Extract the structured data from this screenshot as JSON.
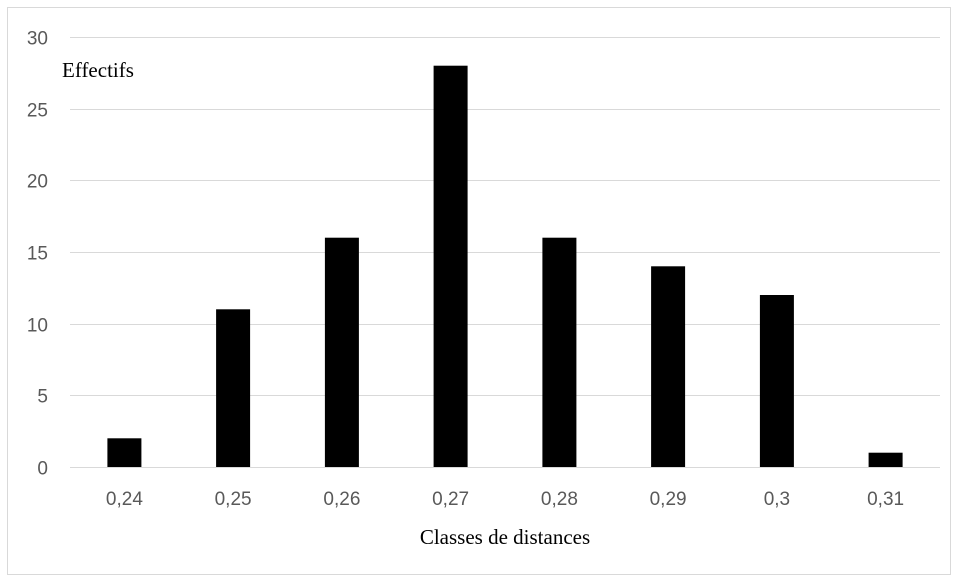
{
  "chart_data": {
    "type": "bar",
    "categories": [
      "0,24",
      "0,25",
      "0,26",
      "0,27",
      "0,28",
      "0,29",
      "0,3",
      "0,31"
    ],
    "values": [
      2,
      11,
      16,
      28,
      16,
      14,
      12,
      1
    ],
    "xlabel": "Classes de distances",
    "ylabel": "Effectifs",
    "ylim": [
      0,
      30
    ],
    "yticks": [
      "0",
      "5",
      "10",
      "15",
      "20",
      "25",
      "30"
    ],
    "grid": true,
    "bar_color": "#000000",
    "grid_color": "#d9d9d9",
    "tick_color": "#595959"
  }
}
